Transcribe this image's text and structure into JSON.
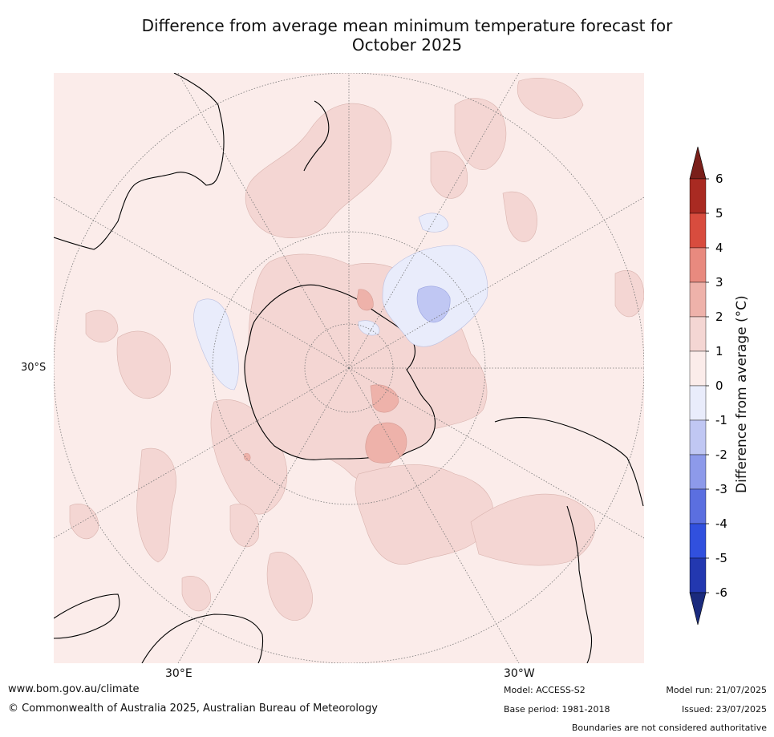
{
  "title_line1": "Difference from average mean minimum temperature forecast for",
  "title_line2": "October 2025",
  "map_labels": {
    "lat_30s": "30°S",
    "lon_30e": "30°E",
    "lon_30w": "30°W"
  },
  "colorbar": {
    "label": "Difference from average (°C)",
    "ticks": [
      "6",
      "5",
      "4",
      "3",
      "2",
      "1",
      "0",
      "-1",
      "-2",
      "-3",
      "-4",
      "-5",
      "-6"
    ],
    "colors": [
      "#7a1f1a",
      "#a92a22",
      "#d84c3e",
      "#e88a7f",
      "#eeb2aa",
      "#f4d6d3",
      "#fbecea",
      "#e9ecfb",
      "#c0c7f3",
      "#8d9aea",
      "#5b6fe0",
      "#3150de",
      "#2338b0",
      "#1a2a7d"
    ]
  },
  "footer": {
    "website": "www.bom.gov.au/climate",
    "copyright": "© Commonwealth of Australia 2025, Australian Bureau of Meteorology",
    "model": "Model: ACCESS-S2",
    "base_period": "Base period: 1981-2018",
    "model_run": "Model run: 21/07/2025",
    "issued": "Issued: 23/07/2025",
    "disclaimer": "Boundaries are not considered authoritative"
  }
}
